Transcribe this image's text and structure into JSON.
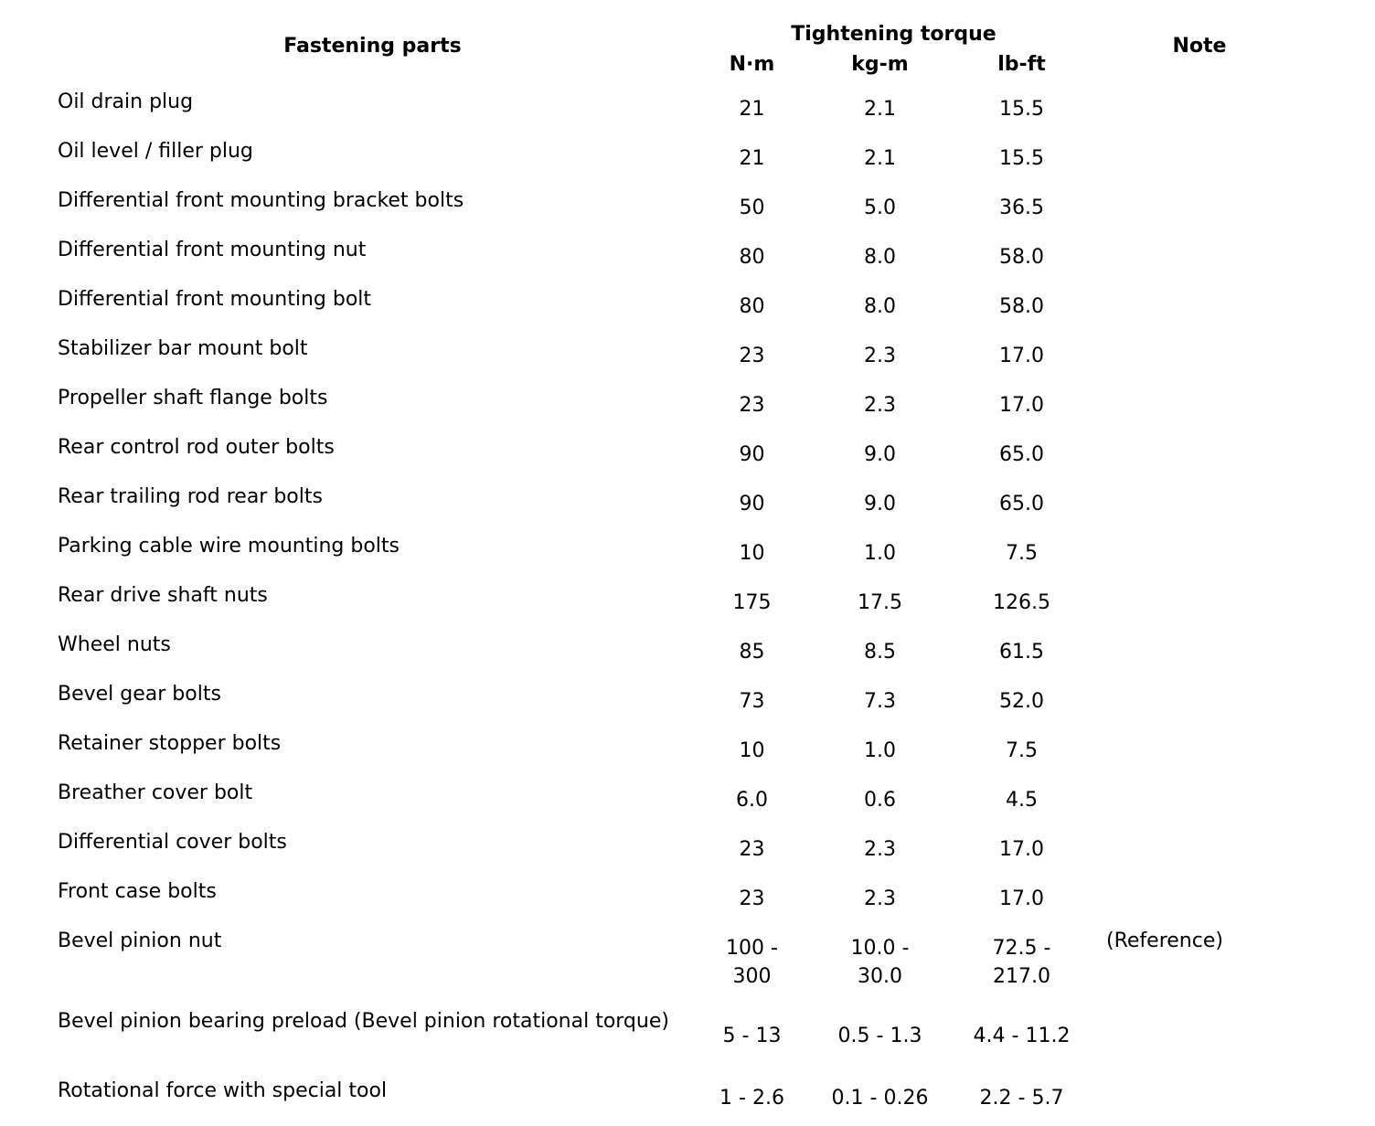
{
  "page": {
    "background_color": "#ffffff",
    "text_color": "#000000"
  },
  "table": {
    "headers": {
      "fastening_parts": "Fastening parts",
      "tightening_torque_group": "Tightening torque",
      "units": [
        "N·m",
        "kg-m",
        "lb-ft"
      ],
      "note": "Note"
    },
    "rows": [
      {
        "part": "Oil drain plug",
        "nm": "21",
        "kgm": "2.1",
        "lbft": "15.5",
        "note": ""
      },
      {
        "part": "Oil level / filler plug",
        "nm": "21",
        "kgm": "2.1",
        "lbft": "15.5",
        "note": ""
      },
      {
        "part": "Differential front mounting bracket bolts",
        "nm": "50",
        "kgm": "5.0",
        "lbft": "36.5",
        "note": ""
      },
      {
        "part": "Differential front mounting nut",
        "nm": "80",
        "kgm": "8.0",
        "lbft": "58.0",
        "note": ""
      },
      {
        "part": "Differential front mounting bolt",
        "nm": "80",
        "kgm": "8.0",
        "lbft": "58.0",
        "note": ""
      },
      {
        "part": "Stabilizer bar mount bolt",
        "nm": "23",
        "kgm": "2.3",
        "lbft": "17.0",
        "note": ""
      },
      {
        "part": "Propeller shaft flange bolts",
        "nm": "23",
        "kgm": "2.3",
        "lbft": "17.0",
        "note": ""
      },
      {
        "part": "Rear control rod outer bolts",
        "nm": "90",
        "kgm": "9.0",
        "lbft": "65.0",
        "note": ""
      },
      {
        "part": "Rear trailing rod rear bolts",
        "nm": "90",
        "kgm": "9.0",
        "lbft": "65.0",
        "note": ""
      },
      {
        "part": "Parking cable wire mounting bolts",
        "nm": "10",
        "kgm": "1.0",
        "lbft": "7.5",
        "note": ""
      },
      {
        "part": "Rear drive shaft nuts",
        "nm": "175",
        "kgm": "17.5",
        "lbft": "126.5",
        "note": ""
      },
      {
        "part": "Wheel nuts",
        "nm": "85",
        "kgm": "8.5",
        "lbft": "61.5",
        "note": ""
      },
      {
        "part": "Bevel gear bolts",
        "nm": "73",
        "kgm": "7.3",
        "lbft": "52.0",
        "note": ""
      },
      {
        "part": "Retainer stopper bolts",
        "nm": "10",
        "kgm": "1.0",
        "lbft": "7.5",
        "note": ""
      },
      {
        "part": "Breather cover bolt",
        "nm": "6.0",
        "kgm": "0.6",
        "lbft": "4.5",
        "note": ""
      },
      {
        "part": "Differential cover bolts",
        "nm": "23",
        "kgm": "2.3",
        "lbft": "17.0",
        "note": ""
      },
      {
        "part": "Front case bolts",
        "nm": "23",
        "kgm": "2.3",
        "lbft": "17.0",
        "note": ""
      },
      {
        "part": "Bevel pinion nut",
        "nm": "100 -\n300",
        "kgm": "10.0 -\n30.0",
        "lbft": "72.5 -\n217.0",
        "note": "(Reference)"
      },
      {
        "part": "Bevel pinion bearing preload (Bevel pinion rotational torque)",
        "nm": "5 - 13",
        "kgm": "0.5 - 1.3",
        "lbft": "4.4 - 11.2",
        "note": ""
      },
      {
        "part": "Rotational force with special tool",
        "nm": "1 - 2.6",
        "kgm": "0.1 - 0.26",
        "lbft": "2.2 - 5.7",
        "note": ""
      }
    ]
  }
}
